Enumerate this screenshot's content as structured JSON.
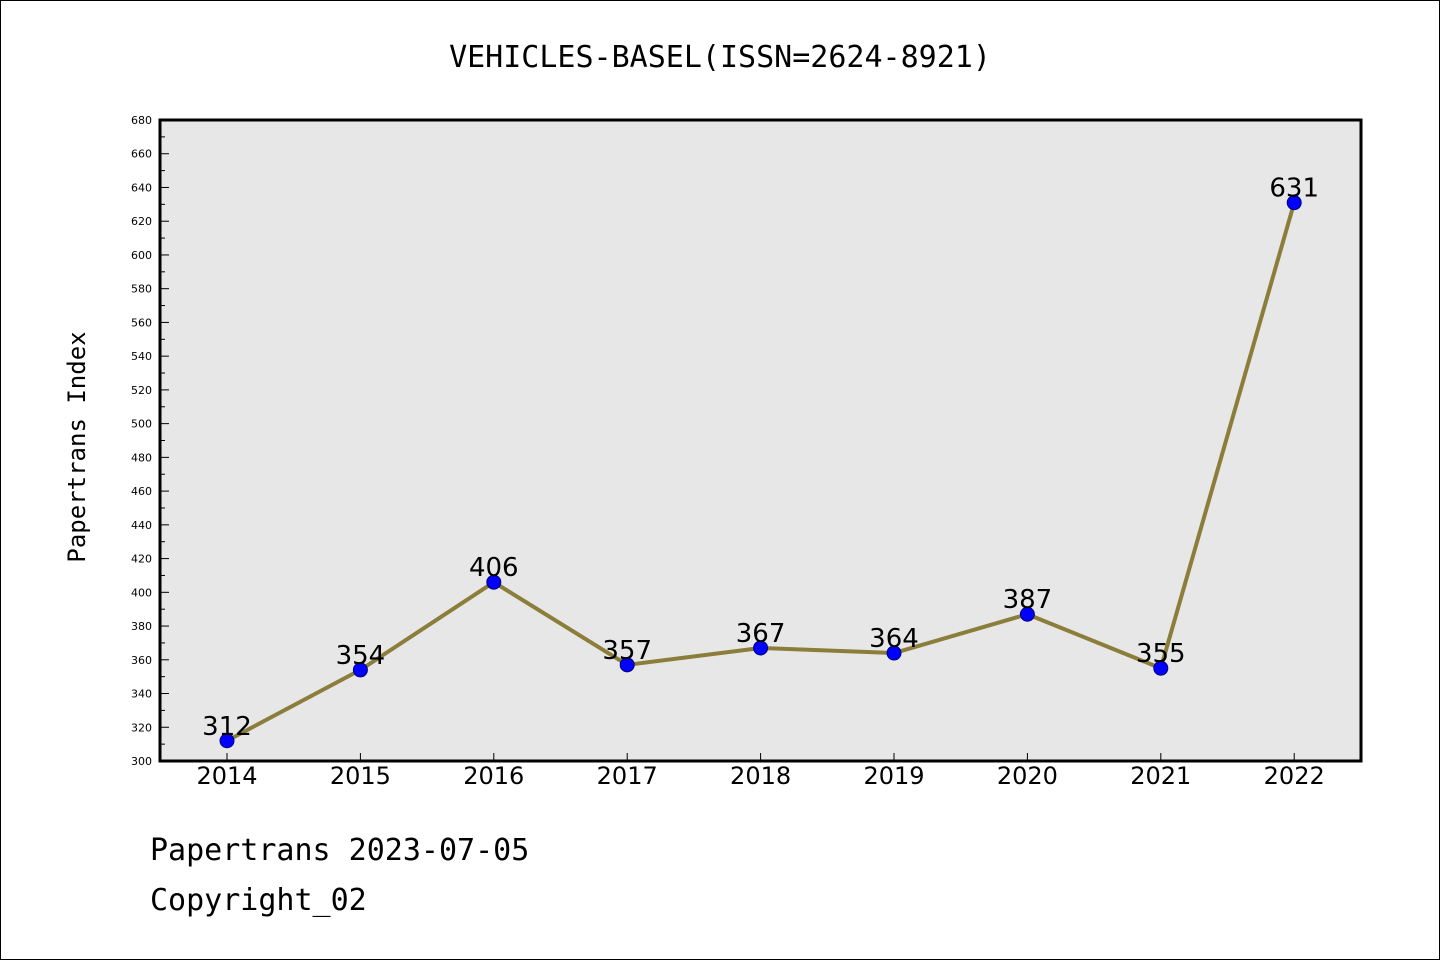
{
  "chart_data": {
    "type": "line",
    "title": "VEHICLES-BASEL(ISSN=2624-8921)",
    "ylabel": "Papertrans Index",
    "xlabel": "",
    "categories": [
      "2014",
      "2015",
      "2016",
      "2017",
      "2018",
      "2019",
      "2020",
      "2021",
      "2022"
    ],
    "values": [
      312,
      354,
      406,
      357,
      367,
      364,
      387,
      355,
      631
    ],
    "ylim": [
      300,
      680
    ],
    "yticks": [
      300,
      320,
      340,
      360,
      380,
      400,
      420,
      440,
      460,
      480,
      500,
      520,
      540,
      560,
      580,
      600,
      620,
      640,
      660,
      680
    ],
    "line_color": "#8b7d3a",
    "marker_color": "#0000ff",
    "plot_background": "#e7e7e7",
    "grid": false,
    "legend": "none"
  },
  "footer": {
    "line1": "Papertrans 2023-07-05",
    "line2": "Copyright_02"
  }
}
